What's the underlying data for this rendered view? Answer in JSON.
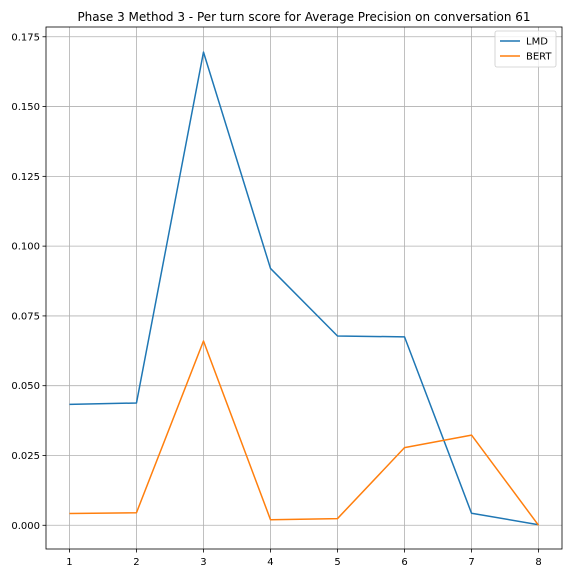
{
  "chart_data": {
    "type": "line",
    "title": "Phase 3 Method 3 - Per turn score for Average Precision on conversation 61",
    "xlabel": "",
    "ylabel": "",
    "x": [
      1,
      2,
      3,
      4,
      5,
      6,
      7,
      8
    ],
    "xlim": [
      0.65,
      8.35
    ],
    "ylim": [
      -0.0085,
      0.1785
    ],
    "xticks": [
      1,
      2,
      3,
      4,
      5,
      6,
      7,
      8
    ],
    "yticks": [
      0.0,
      0.025,
      0.05,
      0.075,
      0.1,
      0.125,
      0.15,
      0.175
    ],
    "ytick_labels": [
      "0.000",
      "0.025",
      "0.050",
      "0.075",
      "0.100",
      "0.125",
      "0.150",
      "0.175"
    ],
    "grid": true,
    "legend_position": "top-right",
    "series": [
      {
        "name": "LMD",
        "color": "#1f77b4",
        "values": [
          0.0433,
          0.0438,
          0.1695,
          0.092,
          0.0678,
          0.0675,
          0.0043,
          0.0002
        ]
      },
      {
        "name": "BERT",
        "color": "#ff7f0e",
        "values": [
          0.0042,
          0.0045,
          0.066,
          0.002,
          0.0024,
          0.0278,
          0.0323,
          0.0
        ]
      }
    ]
  }
}
